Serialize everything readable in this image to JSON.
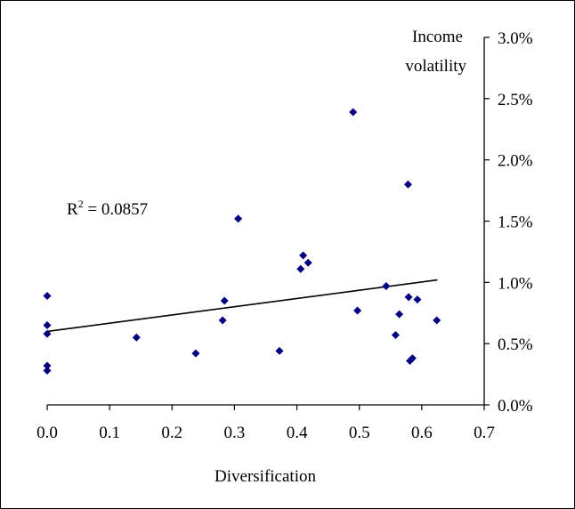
{
  "chart_data": {
    "type": "scatter",
    "xlabel": "Diversification",
    "ylabel_line1": "Income",
    "ylabel_line2": "volatility",
    "xlim": [
      0.0,
      0.7
    ],
    "ylim": [
      0.0,
      3.0
    ],
    "x_ticks": [
      0.0,
      0.1,
      0.2,
      0.3,
      0.4,
      0.5,
      0.6,
      0.7
    ],
    "x_tick_labels": [
      "0.0",
      "0.1",
      "0.2",
      "0.3",
      "0.4",
      "0.5",
      "0.6",
      "0.7"
    ],
    "y_ticks": [
      0.0,
      0.5,
      1.0,
      1.5,
      2.0,
      2.5,
      3.0
    ],
    "y_tick_labels": [
      "0.0%",
      "0.5%",
      "1.0%",
      "1.5%",
      "2.0%",
      "2.5%",
      "3.0%"
    ],
    "y_unit": "%",
    "y_axis_side": "right",
    "grid": false,
    "legend": "none",
    "marker": "diamond",
    "marker_color": "#000080",
    "trendline_color": "#000000",
    "annotation": {
      "prefix": "R",
      "superscript": "2",
      "rest": " = 0.0857"
    },
    "trendline": {
      "x": [
        0.0,
        0.625
      ],
      "y": [
        0.6,
        1.02
      ]
    },
    "points": [
      {
        "x": 0.0,
        "y": 0.89
      },
      {
        "x": 0.0,
        "y": 0.65
      },
      {
        "x": 0.0,
        "y": 0.58
      },
      {
        "x": 0.0,
        "y": 0.32
      },
      {
        "x": 0.0,
        "y": 0.28
      },
      {
        "x": 0.143,
        "y": 0.55
      },
      {
        "x": 0.238,
        "y": 0.42
      },
      {
        "x": 0.281,
        "y": 0.69
      },
      {
        "x": 0.284,
        "y": 0.85
      },
      {
        "x": 0.306,
        "y": 1.52
      },
      {
        "x": 0.372,
        "y": 0.44
      },
      {
        "x": 0.406,
        "y": 1.11
      },
      {
        "x": 0.41,
        "y": 1.22
      },
      {
        "x": 0.418,
        "y": 1.16
      },
      {
        "x": 0.49,
        "y": 2.39
      },
      {
        "x": 0.497,
        "y": 0.77
      },
      {
        "x": 0.543,
        "y": 0.97
      },
      {
        "x": 0.558,
        "y": 0.57
      },
      {
        "x": 0.564,
        "y": 0.74
      },
      {
        "x": 0.578,
        "y": 1.8
      },
      {
        "x": 0.579,
        "y": 0.88
      },
      {
        "x": 0.581,
        "y": 0.36
      },
      {
        "x": 0.585,
        "y": 0.38
      },
      {
        "x": 0.593,
        "y": 0.86
      },
      {
        "x": 0.624,
        "y": 0.69
      }
    ]
  }
}
